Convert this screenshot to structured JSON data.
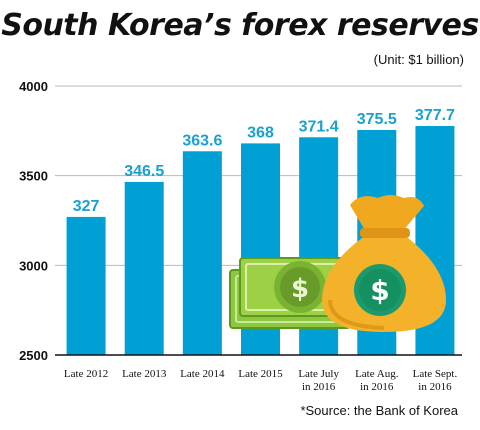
{
  "chart_data": {
    "type": "bar",
    "title": "South Korea’s forex reserves",
    "unit_note": "(Unit: $1 billion)",
    "source_note": "*Source: the Bank of Korea",
    "xlabel": "",
    "ylabel": "",
    "categories": [
      [
        "Late 2012"
      ],
      [
        "Late 2013"
      ],
      [
        "Late 2014"
      ],
      [
        "Late 2015"
      ],
      [
        "Late July",
        "in 2016"
      ],
      [
        "Late Aug.",
        "in 2016"
      ],
      [
        "Late Sept.",
        "in 2016"
      ]
    ],
    "values": [
      3270,
      3465,
      3636,
      3680,
      3714,
      3755,
      3777
    ],
    "data_labels": [
      "327",
      "346.5",
      "363.6",
      "368",
      "371.4",
      "375.5",
      "377.7"
    ],
    "yticks": [
      2500,
      3000,
      3500,
      4000
    ],
    "ylim": [
      2500,
      4000
    ],
    "grid": true,
    "bar_color": "#009fd4",
    "label_color": "#1ba1cf",
    "grid_color": "#b9b9b9"
  },
  "decoration": {
    "bill_symbol": "$",
    "bag_symbol": "$",
    "bill_color": "#8dc63f",
    "bag_color": "#f0a91e"
  }
}
